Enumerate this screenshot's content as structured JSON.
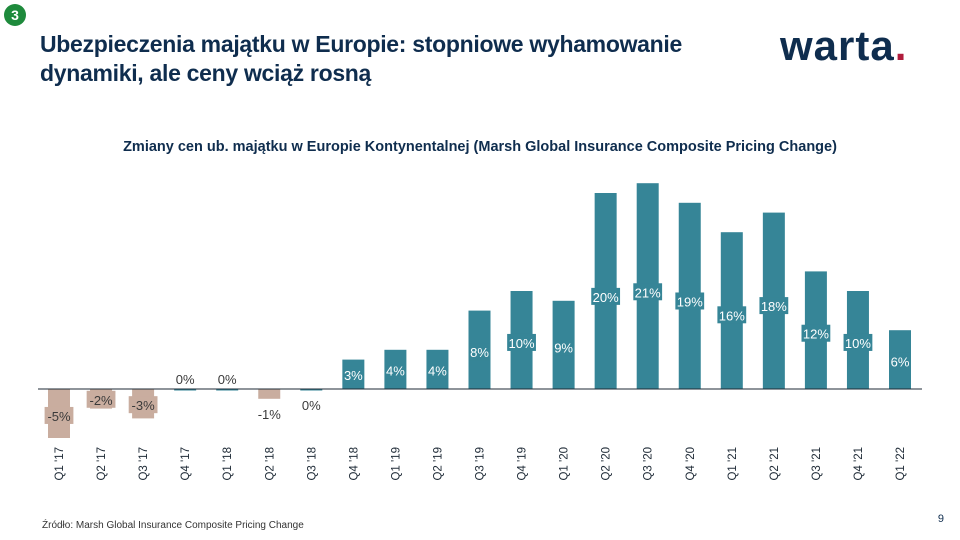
{
  "badge": "3",
  "header": {
    "title": "Ubezpieczenia majątku w Europie: stopniowe wyhamowanie dynamiki, ale ceny wciąż rosną",
    "logo_text": "warta",
    "logo_dot": "."
  },
  "colors": {
    "positive": "#368597",
    "negative": "#c9ad9f",
    "title": "#0f2d4e",
    "brand_accent": "#b01c3c",
    "badge": "#1e8a3c"
  },
  "chart_data": {
    "type": "bar",
    "title": "Zmiany cen ub. majątku w Europie Kontynentalnej  (Marsh Global Insurance Composite Pricing Change)",
    "categories": [
      "Q1 '17",
      "Q2 '17",
      "Q3 '17",
      "Q4 '17",
      "Q1 '18",
      "Q2 '18",
      "Q3 '18",
      "Q4 '18",
      "Q1 '19",
      "Q2 '19",
      "Q3 '19",
      "Q4 '19",
      "Q1 '20",
      "Q2 '20",
      "Q3 '20",
      "Q4 '20",
      "Q1 '21",
      "Q2 '21",
      "Q3 '21",
      "Q4 '21",
      "Q1 '22"
    ],
    "values": [
      -5,
      -2,
      -3,
      0,
      0,
      -1,
      0,
      3,
      4,
      4,
      8,
      10,
      9,
      20,
      21,
      19,
      16,
      18,
      12,
      10,
      6
    ],
    "labels": [
      "-5%",
      "-2%",
      "-3%",
      "0%",
      "0%",
      "-1%",
      "0%",
      "3%",
      "4%",
      "4%",
      "8%",
      "10%",
      "9%",
      "20%",
      "21%",
      "19%",
      "16%",
      "18%",
      "12%",
      "10%",
      "6%"
    ],
    "grid": false,
    "legend": "none"
  },
  "footer": {
    "source": "Źródło: Marsh Global Insurance Composite Pricing Change",
    "page": "9"
  }
}
